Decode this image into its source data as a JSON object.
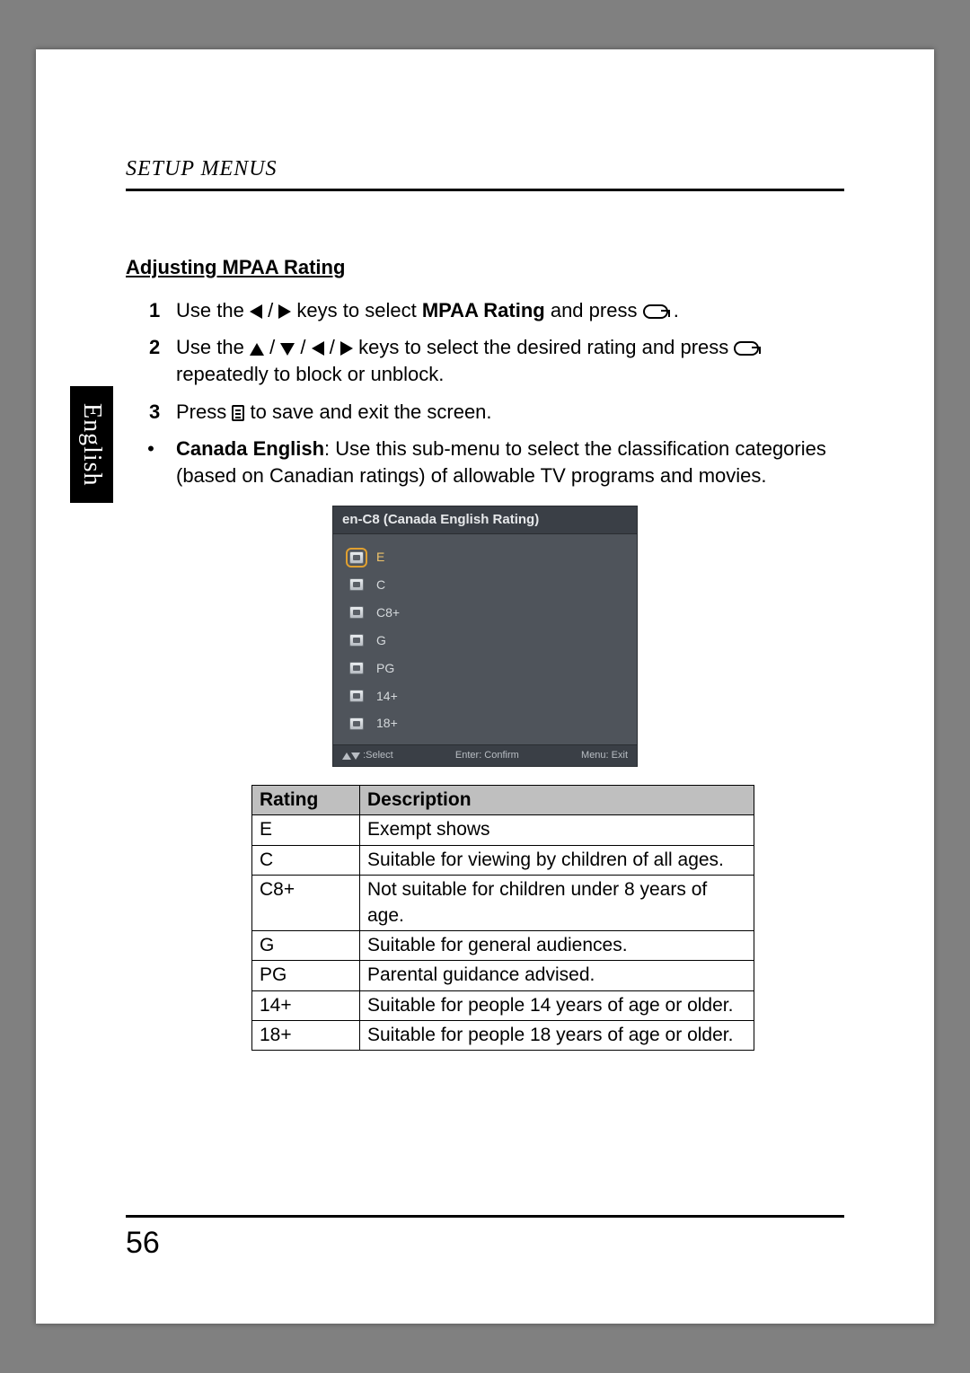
{
  "page": {
    "running_head": "SETUP MENUS",
    "language_tab": "English",
    "page_number": "56"
  },
  "section": {
    "subhead": "Adjusting MPAA Rating",
    "step1_num": "1",
    "step1_a": "Use the ",
    "step1_b": " / ",
    "step1_c": " keys to select ",
    "step1_bold": "MPAA Rating",
    "step1_d": " and press ",
    "step1_e": ".",
    "step2_num": "2",
    "step2_a": "Use the ",
    "step2_b": " / ",
    "step2_c": " / ",
    "step2_d": " / ",
    "step2_e": " keys to select the desired rating and press ",
    "step2_f": " repeatedly to block or unblock.",
    "step3_num": "3",
    "step3_a": "Press ",
    "step3_b": " to save and exit the screen.",
    "bullet_lead_bold": "Canada English",
    "bullet_lead_rest": ": Use this sub-menu to select the classification categories (based on Canadian ratings) of allowable TV programs and movies."
  },
  "osd": {
    "title": "en-C8 (Canada English Rating)",
    "items": [
      "E",
      "C",
      "C8+",
      "G",
      "PG",
      "14+",
      "18+"
    ],
    "selected_index": 0,
    "foot_select": ":Select",
    "foot_enter": "Enter: Confirm",
    "foot_menu": "Menu: Exit",
    "colors": {
      "title_bg": "#3a3f46",
      "body_bg": "#4f545b",
      "highlight": "#e0a030",
      "text": "#d5d9dc"
    }
  },
  "table": {
    "headers": [
      "Rating",
      "Description"
    ],
    "rows": [
      [
        "E",
        "Exempt shows"
      ],
      [
        "C",
        "Suitable for viewing by children of all ages."
      ],
      [
        "C8+",
        "Not suitable for children under 8 years of age."
      ],
      [
        "G",
        "Suitable for general audiences."
      ],
      [
        "PG",
        "Parental guidance advised."
      ],
      [
        "14+",
        "Suitable for people 14 years of age or older."
      ],
      [
        "18+",
        "Suitable for people 18 years of age or older."
      ]
    ]
  }
}
